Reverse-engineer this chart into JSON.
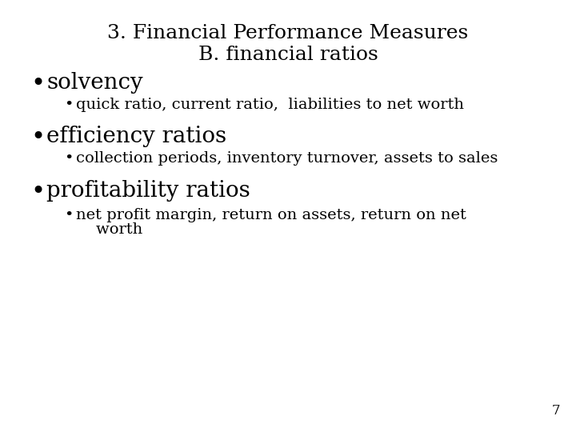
{
  "title_line1": "3. Financial Performance Measures",
  "title_line2": "B. financial ratios",
  "bullet1": "solvency",
  "sub_bullet1": "quick ratio, current ratio,  liabilities to net worth",
  "bullet2": "efficiency ratios",
  "sub_bullet2": "collection periods, inventory turnover, assets to sales",
  "bullet3": "profitability ratios",
  "sub_bullet3_line1": "net profit margin, return on assets, return on net",
  "sub_bullet3_line2": "    worth",
  "page_number": "7",
  "background_color": "#ffffff",
  "text_color": "#000000",
  "title_fontsize": 18,
  "bullet_fontsize": 20,
  "sub_bullet_fontsize": 14,
  "page_num_fontsize": 12,
  "font_family": "DejaVu Serif"
}
